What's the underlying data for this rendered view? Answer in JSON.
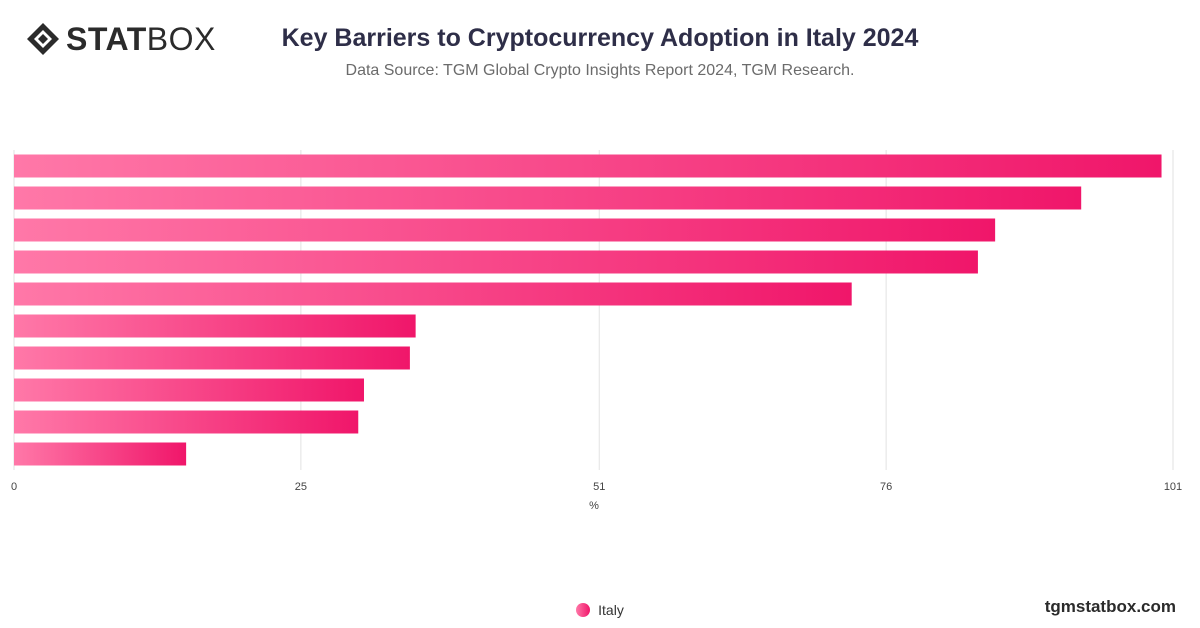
{
  "header": {
    "logo_bold": "STAT",
    "logo_light": "BOX",
    "title": "Key Barriers to Cryptocurrency Adoption in Italy 2024",
    "subtitle": "Data Source: TGM Global Crypto Insights Report 2024, TGM Research."
  },
  "footer": {
    "brand": "tgmstatbox.com"
  },
  "colors": {
    "bar_start": "#ff78a8",
    "bar_end": "#f0166a",
    "grid": "#e2e2e2",
    "axis_text": "#444444"
  },
  "chart_data": {
    "type": "bar",
    "orientation": "horizontal",
    "categories": [
      "",
      "",
      "",
      "",
      "",
      "",
      "",
      "",
      "",
      ""
    ],
    "series": [
      {
        "name": "Italy",
        "values": [
          100,
          93,
          85.5,
          84,
          73,
          35,
          34.5,
          30.5,
          30,
          15
        ]
      }
    ],
    "x_ticks": [
      0,
      25,
      51,
      76,
      101
    ],
    "xlim": [
      0,
      101
    ],
    "xlabel": "%",
    "ylabel": "",
    "grid": "vertical",
    "legend_placement": "bottom-center"
  }
}
